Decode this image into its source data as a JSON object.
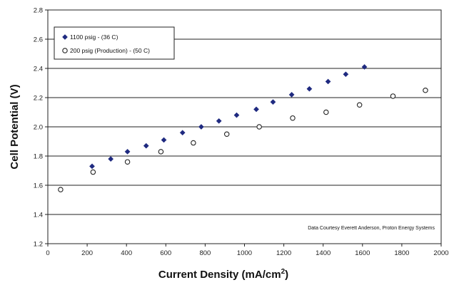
{
  "chart_data": {
    "type": "scatter",
    "xlabel": "Current Density (mA/cm",
    "xlabel_sup": "2",
    "xlabel_end": ")",
    "ylabel": "Cell Potential (V)",
    "xlim": [
      0,
      2000
    ],
    "ylim": [
      1.2,
      2.8
    ],
    "x_ticks": [
      "0",
      "200",
      "400",
      "600",
      "800",
      "1000",
      "1200",
      "1400",
      "1600",
      "1800",
      "2000"
    ],
    "y_ticks": [
      "1.2",
      "1.4",
      "1.6",
      "1.8",
      "2.0",
      "2.2",
      "2.4",
      "2.6",
      "2.8"
    ],
    "grid": "horizontal",
    "legend_position": "top-left",
    "annotation": "Data Courtesy Everett Anderson, Proton Energy Systems",
    "series": [
      {
        "name": "1100 psig - (36 C)",
        "marker": "filled-diamond",
        "color": "#1f2a80",
        "points": [
          [
            225,
            1.73
          ],
          [
            320,
            1.78
          ],
          [
            405,
            1.83
          ],
          [
            500,
            1.87
          ],
          [
            590,
            1.91
          ],
          [
            685,
            1.96
          ],
          [
            780,
            2.0
          ],
          [
            870,
            2.04
          ],
          [
            960,
            2.08
          ],
          [
            1060,
            2.12
          ],
          [
            1145,
            2.17
          ],
          [
            1240,
            2.22
          ],
          [
            1330,
            2.26
          ],
          [
            1425,
            2.31
          ],
          [
            1515,
            2.36
          ],
          [
            1610,
            2.41
          ]
        ]
      },
      {
        "name": "200 psig (Production) - (50 C)",
        "marker": "open-circle",
        "color": "#222222",
        "points": [
          [
            65,
            1.57
          ],
          [
            230,
            1.69
          ],
          [
            405,
            1.76
          ],
          [
            575,
            1.83
          ],
          [
            740,
            1.89
          ],
          [
            910,
            1.95
          ],
          [
            1075,
            2.0
          ],
          [
            1245,
            2.06
          ],
          [
            1415,
            2.1
          ],
          [
            1585,
            2.15
          ],
          [
            1755,
            2.21
          ],
          [
            1920,
            2.25
          ]
        ]
      }
    ]
  }
}
